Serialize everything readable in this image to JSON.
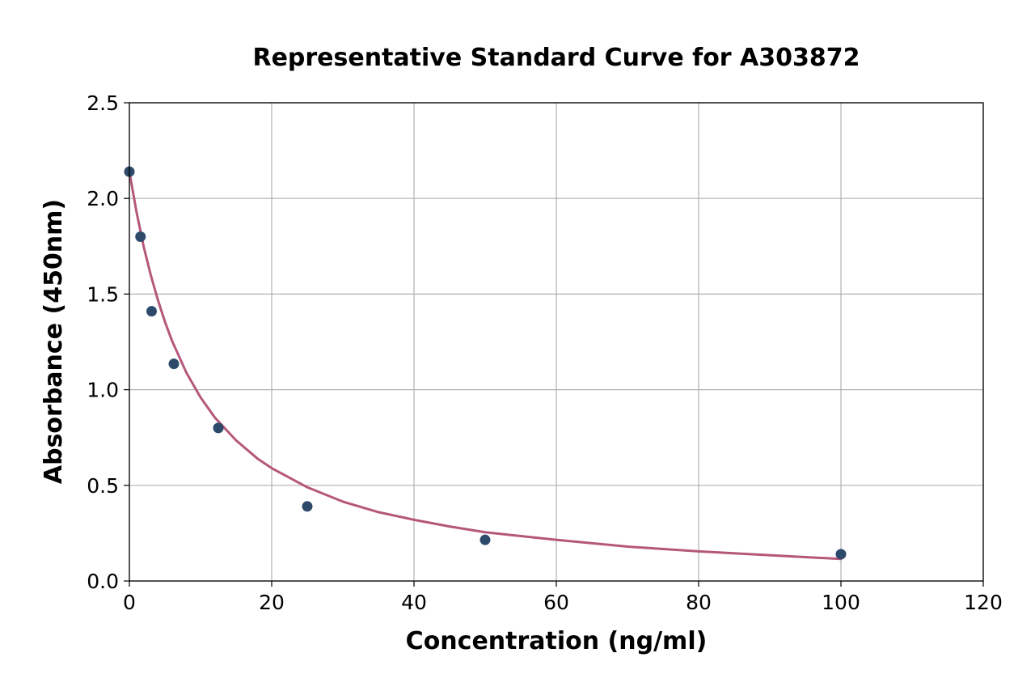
{
  "chart_data": {
    "type": "scatter",
    "title": "Representative Standard Curve for A303872",
    "xlabel": "Concentration (ng/ml)",
    "ylabel": "Absorbance (450nm)",
    "xlim": [
      0,
      120
    ],
    "ylim": [
      0,
      2.5
    ],
    "xticks": [
      "0",
      "20",
      "40",
      "60",
      "80",
      "100",
      "120"
    ],
    "yticks": [
      "0.0",
      "0.5",
      "1.0",
      "1.5",
      "2.0",
      "2.5"
    ],
    "grid": true,
    "series": [
      {
        "kind": "points",
        "color": "#2d4a6b",
        "x": [
          0,
          1.5625,
          3.125,
          6.25,
          12.5,
          25,
          50,
          100
        ],
        "y": [
          2.14,
          1.8,
          1.41,
          1.135,
          0.8,
          0.39,
          0.215,
          0.14
        ]
      },
      {
        "kind": "fitted-curve",
        "color": "#b5577a",
        "x": [
          0,
          1,
          2,
          3,
          4,
          5,
          6,
          8,
          10,
          12,
          15,
          18,
          20,
          25,
          30,
          35,
          40,
          45,
          50,
          60,
          70,
          80,
          90,
          100
        ],
        "y": [
          2.14,
          1.93,
          1.75,
          1.6,
          1.47,
          1.355,
          1.255,
          1.09,
          0.96,
          0.855,
          0.735,
          0.64,
          0.59,
          0.49,
          0.415,
          0.36,
          0.32,
          0.285,
          0.255,
          0.215,
          0.18,
          0.155,
          0.135,
          0.115
        ]
      }
    ]
  }
}
